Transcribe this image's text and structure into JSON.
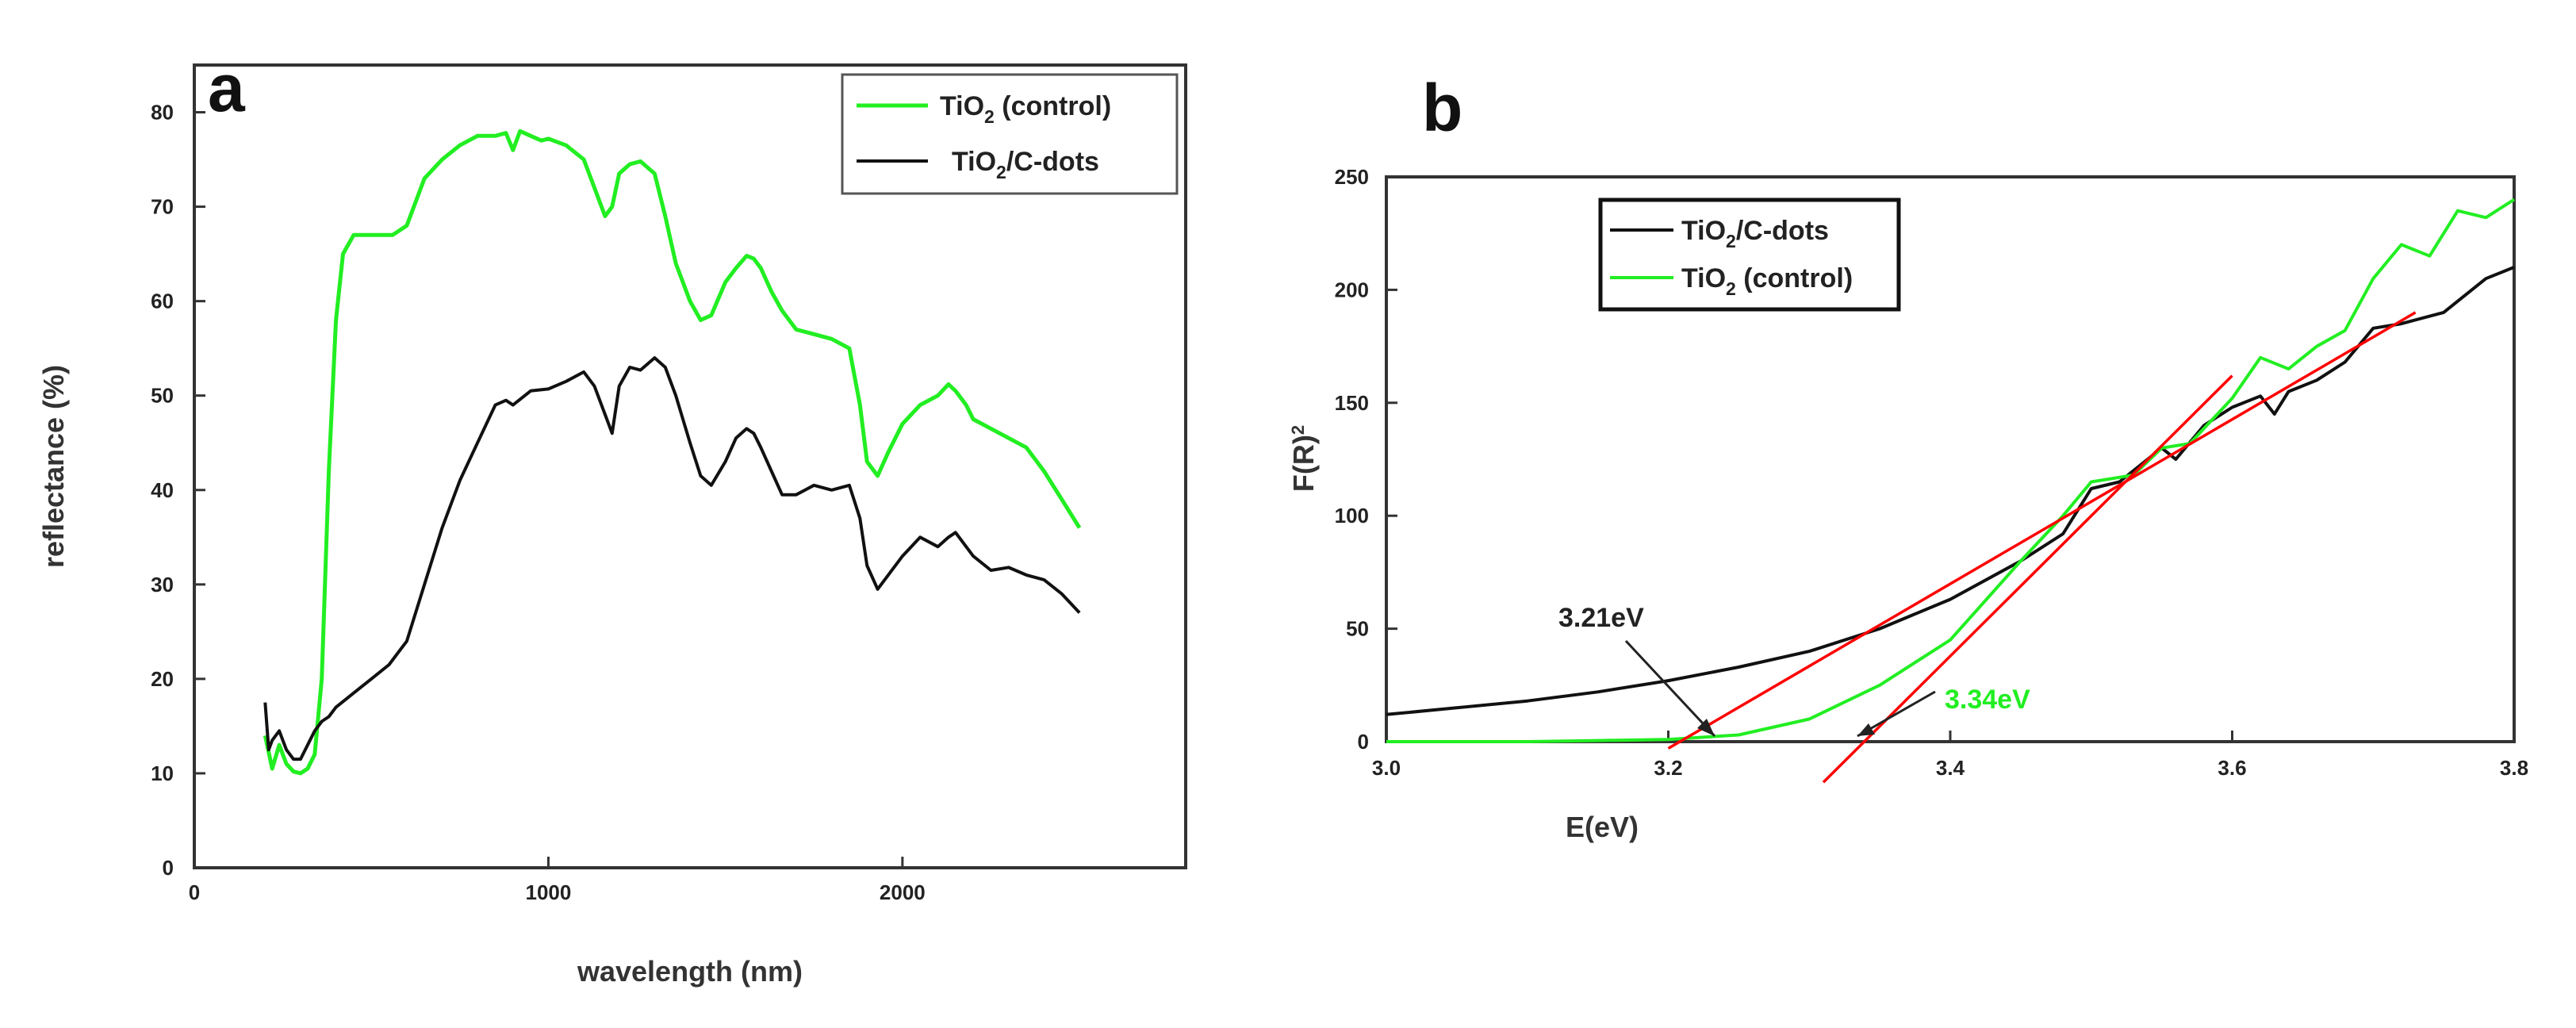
{
  "chart_data": [
    {
      "type": "line",
      "panel_label": "a",
      "xlabel": "wavelength (nm)",
      "ylabel": "reflectance (%)",
      "xlim": [
        0,
        2800
      ],
      "ylim": [
        0,
        85
      ],
      "x_ticks": [
        0,
        1000,
        2000
      ],
      "y_ticks": [
        0,
        10,
        20,
        30,
        40,
        50,
        60,
        70,
        80
      ],
      "legend": {
        "position": "top-right",
        "entries": [
          "TiO2 (control)",
          "TiO2/C-dots"
        ]
      },
      "series": [
        {
          "name": "TiO2 (control)",
          "color": "#22ee22",
          "x": [
            200,
            220,
            240,
            260,
            280,
            300,
            320,
            340,
            360,
            380,
            400,
            420,
            450,
            480,
            520,
            560,
            600,
            650,
            700,
            750,
            800,
            850,
            880,
            900,
            920,
            950,
            980,
            1000,
            1050,
            1100,
            1130,
            1160,
            1180,
            1200,
            1230,
            1260,
            1300,
            1330,
            1360,
            1400,
            1430,
            1460,
            1500,
            1530,
            1560,
            1580,
            1600,
            1630,
            1660,
            1700,
            1750,
            1800,
            1850,
            1880,
            1900,
            1930,
            1960,
            2000,
            2050,
            2100,
            2130,
            2150,
            2180,
            2200,
            2250,
            2300,
            2350,
            2400,
            2450,
            2500
          ],
          "values": [
            14,
            10.5,
            13,
            11,
            10.2,
            10,
            10.5,
            12,
            20,
            42,
            58,
            65,
            67,
            67,
            67,
            67,
            68,
            73,
            75,
            76.5,
            77.5,
            77.5,
            77.8,
            76,
            78,
            77.5,
            77,
            77.2,
            76.5,
            75,
            72,
            69,
            70,
            73.5,
            74.5,
            74.8,
            73.5,
            69,
            64,
            60,
            58,
            58.5,
            62,
            63.5,
            64.8,
            64.5,
            63.5,
            61,
            59,
            57,
            56.5,
            56,
            55,
            49,
            43,
            41.5,
            44,
            47,
            49,
            50,
            51.2,
            50.5,
            49,
            47.5,
            46.5,
            45.5,
            44.5,
            42,
            39,
            36
          ]
        },
        {
          "name": "TiO2/C-dots",
          "color": "#111111",
          "x": [
            200,
            210,
            220,
            240,
            260,
            280,
            300,
            320,
            340,
            360,
            380,
            400,
            450,
            500,
            550,
            600,
            650,
            700,
            750,
            800,
            850,
            880,
            900,
            950,
            1000,
            1050,
            1100,
            1130,
            1160,
            1180,
            1200,
            1230,
            1260,
            1300,
            1330,
            1360,
            1400,
            1430,
            1460,
            1500,
            1530,
            1560,
            1580,
            1600,
            1630,
            1660,
            1700,
            1750,
            1800,
            1850,
            1880,
            1900,
            1930,
            1960,
            2000,
            2050,
            2100,
            2130,
            2150,
            2180,
            2200,
            2250,
            2300,
            2350,
            2400,
            2450,
            2500
          ],
          "values": [
            17.5,
            12.5,
            13.5,
            14.5,
            12.5,
            11.5,
            11.5,
            13,
            14.5,
            15.5,
            16,
            17,
            18.5,
            20,
            21.5,
            24,
            30,
            36,
            41,
            45,
            49,
            49.5,
            49,
            50.5,
            50.7,
            51.5,
            52.5,
            51,
            48,
            46,
            51,
            53,
            52.7,
            54,
            53,
            50,
            45,
            41.5,
            40.5,
            43,
            45.5,
            46.5,
            46,
            44.5,
            42,
            39.5,
            39.5,
            40.5,
            40,
            40.5,
            37,
            32,
            29.5,
            31,
            33,
            35,
            34,
            35,
            35.5,
            34,
            33,
            31.5,
            31.8,
            31,
            30.5,
            29,
            27
          ]
        }
      ]
    },
    {
      "type": "line",
      "panel_label": "b",
      "xlabel": "E(eV)",
      "ylabel": "F(R)²",
      "xlim": [
        3.0,
        3.8
      ],
      "ylim": [
        0,
        250
      ],
      "x_ticks": [
        "3.0",
        "3.2",
        "3.4",
        "3.6",
        "3.8"
      ],
      "y_ticks": [
        "0",
        "50",
        "100",
        "150",
        "200",
        "250"
      ],
      "legend": {
        "position": "top-left",
        "entries": [
          "TiO2/C-dots",
          "TiO2 (control)"
        ]
      },
      "series": [
        {
          "name": "TiO2/C-dots",
          "color": "#111111",
          "x": [
            3.0,
            3.05,
            3.1,
            3.15,
            3.2,
            3.25,
            3.3,
            3.35,
            3.4,
            3.45,
            3.48,
            3.5,
            3.52,
            3.55,
            3.56,
            3.58,
            3.6,
            3.62,
            3.63,
            3.64,
            3.66,
            3.68,
            3.7,
            3.72,
            3.75,
            3.78,
            3.8
          ],
          "values": [
            12,
            15,
            18,
            22,
            27,
            33,
            40,
            50,
            63,
            80,
            92,
            112,
            115,
            130,
            125,
            140,
            148,
            153,
            145,
            155,
            160,
            168,
            183,
            185,
            190,
            205,
            210
          ]
        },
        {
          "name": "TiO2 (control)",
          "color": "#22ee22",
          "x": [
            3.0,
            3.05,
            3.1,
            3.15,
            3.2,
            3.25,
            3.3,
            3.35,
            3.4,
            3.45,
            3.48,
            3.5,
            3.53,
            3.55,
            3.57,
            3.6,
            3.62,
            3.64,
            3.66,
            3.68,
            3.7,
            3.72,
            3.74,
            3.76,
            3.78,
            3.8
          ],
          "values": [
            0,
            0,
            0,
            0.5,
            1,
            3,
            10,
            25,
            45,
            80,
            100,
            115,
            118,
            130,
            132,
            152,
            170,
            165,
            175,
            182,
            205,
            220,
            215,
            235,
            232,
            240
          ]
        }
      ],
      "tangent_lines": [
        {
          "color": "#ff0000",
          "x": [
            3.2,
            3.73
          ],
          "values": [
            -3,
            190
          ]
        },
        {
          "color": "#ff0000",
          "x": [
            3.31,
            3.6
          ],
          "values": [
            -18,
            162
          ]
        }
      ],
      "annotations": [
        {
          "text": "3.21eV",
          "color": "#222222",
          "x": 3.23,
          "y": 2
        },
        {
          "text": "3.34eV",
          "color": "#22ee22",
          "x": 3.34,
          "y": 2
        }
      ]
    }
  ]
}
